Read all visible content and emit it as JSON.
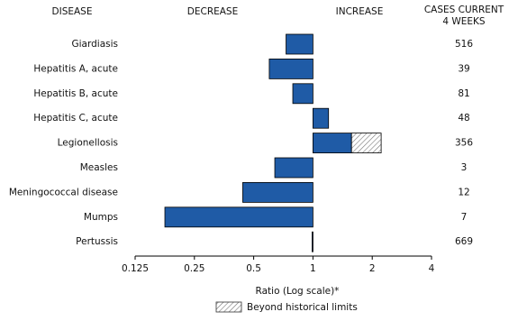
{
  "chart_data": {
    "type": "bar",
    "orientation": "horizontal",
    "log_scale": true,
    "headers": {
      "disease": "DISEASE",
      "decrease": "DECREASE",
      "increase": "INCREASE",
      "cases": [
        "CASES CURRENT",
        "4 WEEKS"
      ]
    },
    "categories": [
      "Giardiasis",
      "Hepatitis A, acute",
      "Hepatitis B, acute",
      "Hepatitis C, acute",
      "Legionellosis",
      "Measles",
      "Meningococcal disease",
      "Mumps",
      "Pertussis"
    ],
    "values": [
      0.73,
      0.6,
      0.79,
      1.2,
      2.22,
      0.64,
      0.44,
      0.177,
      0.99
    ],
    "historical_limits": [
      null,
      null,
      null,
      null,
      1.57,
      null,
      null,
      null,
      null
    ],
    "cases": [
      516,
      39,
      81,
      48,
      356,
      3,
      12,
      7,
      669
    ],
    "color": "#1f5ba6",
    "xlim": [
      0.125,
      4
    ],
    "xticks": [
      0.125,
      0.25,
      0.5,
      1,
      2,
      4
    ],
    "xlabel": "Ratio (Log scale)*",
    "legend_label": "Beyond historical limits"
  }
}
